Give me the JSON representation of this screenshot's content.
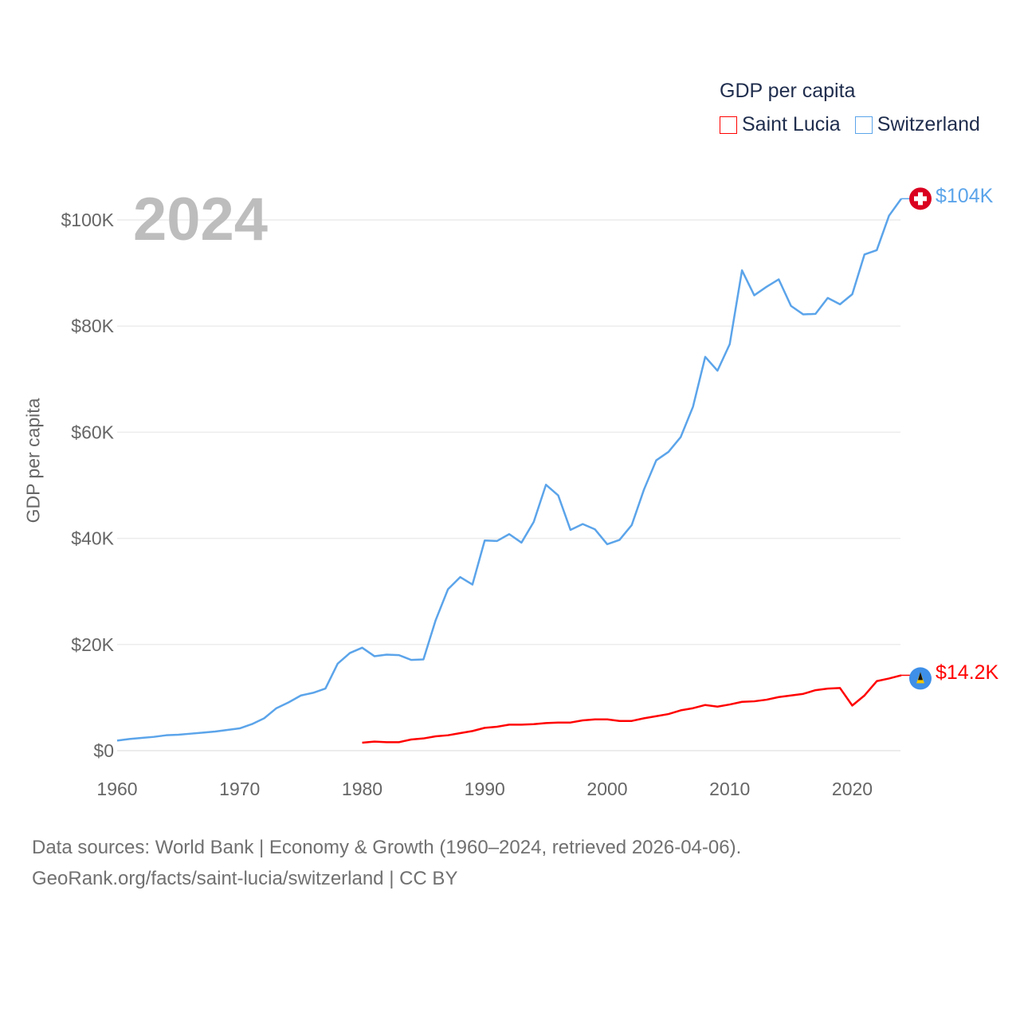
{
  "chart_data": {
    "type": "line",
    "title": "GDP per capita",
    "xlabel": "",
    "ylabel": "GDP per capita",
    "year_overlay": "2024",
    "xlim": [
      1960,
      2024
    ],
    "ylim": [
      0,
      100000
    ],
    "x_ticks": [
      "1960",
      "1970",
      "1980",
      "1990",
      "2000",
      "2010",
      "2020"
    ],
    "y_ticks": [
      {
        "value": 0,
        "label": "$0"
      },
      {
        "value": 20000,
        "label": "$20K"
      },
      {
        "value": 40000,
        "label": "$40K"
      },
      {
        "value": 60000,
        "label": "$60K"
      },
      {
        "value": 80000,
        "label": "$80K"
      },
      {
        "value": 100000,
        "label": "$100K"
      }
    ],
    "grid": true,
    "legend_position": "top-right",
    "series": [
      {
        "name": "Saint Lucia",
        "color": "#ff0000",
        "start_year": 1980,
        "end_label": "$14.2K",
        "flag_icon": "saint-lucia-flag-icon",
        "values": [
          1500,
          1700,
          1600,
          1600,
          2100,
          2300,
          2700,
          2900,
          3300,
          3700,
          4300,
          4500,
          4900,
          4900,
          5000,
          5200,
          5300,
          5300,
          5700,
          5900,
          5900,
          5600,
          5600,
          6100,
          6500,
          6900,
          7600,
          8000,
          8600,
          8300,
          8700,
          9200,
          9300,
          9600,
          10100,
          10400,
          10700,
          11400,
          11700,
          11800,
          8500,
          10400,
          13100,
          13600,
          14200
        ]
      },
      {
        "name": "Switzerland",
        "color": "#5ba4ea",
        "start_year": 1960,
        "end_label": "$104K",
        "flag_icon": "switzerland-flag-icon",
        "values": [
          1900,
          2200,
          2400,
          2600,
          2900,
          3000,
          3200,
          3400,
          3600,
          3900,
          4200,
          5000,
          6100,
          8000,
          9100,
          10400,
          10900,
          11700,
          16400,
          18400,
          19400,
          17800,
          18100,
          18000,
          17100,
          17200,
          24600,
          30400,
          32700,
          31300,
          39600,
          39500,
          40800,
          39200,
          43100,
          50100,
          48100,
          41600,
          42700,
          41700,
          38900,
          39700,
          42500,
          49200,
          54700,
          56300,
          59100,
          64800,
          74200,
          71600,
          76600,
          90500,
          85800,
          87400,
          88800,
          83800,
          82200,
          82300,
          85300,
          84100,
          86000,
          93500,
          94300,
          100800,
          104000
        ]
      }
    ]
  },
  "footer": {
    "line1": "Data sources: World Bank | Economy & Growth (1960–2024, retrieved 2026-04-06).",
    "line2": "GeoRank.org/facts/saint-lucia/switzerland | CC BY"
  }
}
